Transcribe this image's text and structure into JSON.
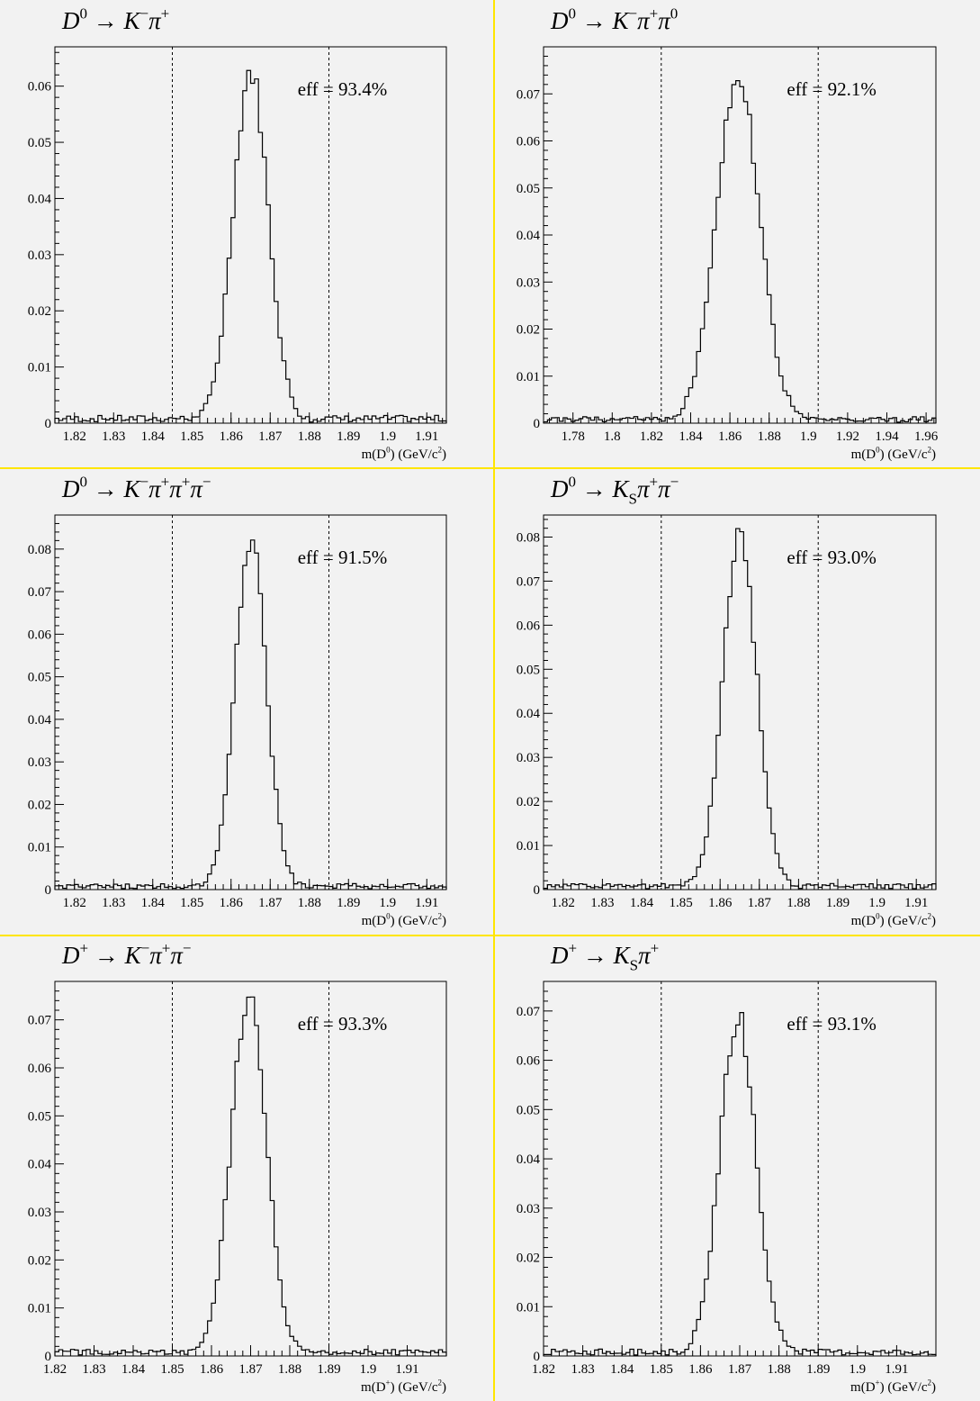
{
  "chart_data": [
    {
      "type": "histogram",
      "title": "D0 → K−π+",
      "title_parts": [
        "D",
        "0",
        " → K",
        "−",
        "π",
        "+"
      ],
      "xlabel": "m(D0) (GeV/c2)",
      "xlabel_parts": [
        "m(D",
        "0",
        ") (GeV/c",
        "2",
        ")"
      ],
      "xlim": [
        1.815,
        1.915
      ],
      "ylim": [
        0,
        0.067
      ],
      "x_ticks": [
        "1.82",
        "1.83",
        "1.84",
        "1.85",
        "1.86",
        "1.87",
        "1.88",
        "1.89",
        "1.9",
        "1.91"
      ],
      "y_ticks": [
        "0",
        "0.01",
        "0.02",
        "0.03",
        "0.04",
        "0.05",
        "0.06"
      ],
      "cut_lines": [
        1.845,
        1.885
      ],
      "annotation": "eff = 93.4%",
      "peak_mean": 1.865,
      "peak_sigma": 0.0045,
      "peak_height": 0.062
    },
    {
      "type": "histogram",
      "title": "D0 → K−π+π0",
      "title_parts": [
        "D",
        "0",
        " → K",
        "−",
        "π",
        "+",
        "π",
        "0"
      ],
      "xlabel": "m(D0) (GeV/c2)",
      "xlabel_parts": [
        "m(D",
        "0",
        ") (GeV/c",
        "2",
        ")"
      ],
      "xlim": [
        1.765,
        1.965
      ],
      "ylim": [
        0,
        0.08
      ],
      "x_ticks": [
        "1.78",
        "1.8",
        "1.82",
        "1.84",
        "1.86",
        "1.88",
        "1.9",
        "1.92",
        "1.94",
        "1.96"
      ],
      "y_ticks": [
        "0",
        "0.01",
        "0.02",
        "0.03",
        "0.04",
        "0.05",
        "0.06",
        "0.07"
      ],
      "cut_lines": [
        1.825,
        1.905
      ],
      "annotation": "eff = 92.1%",
      "peak_mean": 1.864,
      "peak_sigma": 0.011,
      "peak_height": 0.073
    },
    {
      "type": "histogram",
      "title": "D0 → K−π+π+π−",
      "title_parts": [
        "D",
        "0",
        " → K",
        "−",
        "π",
        "+",
        "π",
        "+",
        "π",
        "−"
      ],
      "xlabel": "m(D0) (GeV/c2)",
      "xlabel_parts": [
        "m(D",
        "0",
        ") (GeV/c",
        "2",
        ")"
      ],
      "xlim": [
        1.815,
        1.915
      ],
      "ylim": [
        0,
        0.088
      ],
      "x_ticks": [
        "1.82",
        "1.83",
        "1.84",
        "1.85",
        "1.86",
        "1.87",
        "1.88",
        "1.89",
        "1.9",
        "1.91"
      ],
      "y_ticks": [
        "0",
        "0.01",
        "0.02",
        "0.03",
        "0.04",
        "0.05",
        "0.06",
        "0.07",
        "0.08"
      ],
      "cut_lines": [
        1.845,
        1.885
      ],
      "annotation": "eff = 91.5%",
      "peak_mean": 1.865,
      "peak_sigma": 0.004,
      "peak_height": 0.082
    },
    {
      "type": "histogram",
      "title": "D0 → KSπ+π−",
      "title_parts": [
        "D",
        "0",
        " → K",
        "S",
        "π",
        "+",
        "π",
        "−"
      ],
      "xlabel": "m(D0) (GeV/c2)",
      "xlabel_parts": [
        "m(D",
        "0",
        ") (GeV/c",
        "2",
        ")"
      ],
      "xlim": [
        1.815,
        1.915
      ],
      "ylim": [
        0,
        0.085
      ],
      "x_ticks": [
        "1.82",
        "1.83",
        "1.84",
        "1.85",
        "1.86",
        "1.87",
        "1.88",
        "1.89",
        "1.9",
        "1.91"
      ],
      "y_ticks": [
        "0",
        "0.01",
        "0.02",
        "0.03",
        "0.04",
        "0.05",
        "0.06",
        "0.07",
        "0.08"
      ],
      "cut_lines": [
        1.845,
        1.885
      ],
      "annotation": "eff = 93.0%",
      "peak_mean": 1.865,
      "peak_sigma": 0.0043,
      "peak_height": 0.08
    },
    {
      "type": "histogram",
      "title": "D+ → K−π+π−",
      "title_parts": [
        "D",
        "+",
        " → K",
        "−",
        "π",
        "+",
        "π",
        "−"
      ],
      "xlabel": "m(D+) (GeV/c2)",
      "xlabel_parts": [
        "m(D",
        "+",
        ") (GeV/c",
        "2",
        ")"
      ],
      "xlim": [
        1.82,
        1.92
      ],
      "ylim": [
        0,
        0.078
      ],
      "x_ticks": [
        "1.82",
        "1.83",
        "1.84",
        "1.85",
        "1.86",
        "1.87",
        "1.88",
        "1.89",
        "1.9",
        "1.91"
      ],
      "y_ticks": [
        "0",
        "0.01",
        "0.02",
        "0.03",
        "0.04",
        "0.05",
        "0.06",
        "0.07"
      ],
      "cut_lines": [
        1.85,
        1.89
      ],
      "annotation": "eff = 93.3%",
      "peak_mean": 1.8695,
      "peak_sigma": 0.0045,
      "peak_height": 0.074
    },
    {
      "type": "histogram",
      "title": "D+ → KSπ+",
      "title_parts": [
        "D",
        "+",
        " → K",
        "S",
        "π",
        "+"
      ],
      "xlabel": "m(D+) (GeV/c2)",
      "xlabel_parts": [
        "m(D",
        "+",
        ") (GeV/c",
        "2",
        ")"
      ],
      "xlim": [
        1.82,
        1.92
      ],
      "ylim": [
        0,
        0.076
      ],
      "x_ticks": [
        "1.82",
        "1.83",
        "1.84",
        "1.85",
        "1.86",
        "1.87",
        "1.88",
        "1.89",
        "1.9",
        "1.91"
      ],
      "y_ticks": [
        "0",
        "0.01",
        "0.02",
        "0.03",
        "0.04",
        "0.05",
        "0.06",
        "0.07"
      ],
      "cut_lines": [
        1.85,
        1.89
      ],
      "annotation": "eff = 93.1%",
      "peak_mean": 1.8695,
      "peak_sigma": 0.0046,
      "peak_height": 0.068
    }
  ]
}
